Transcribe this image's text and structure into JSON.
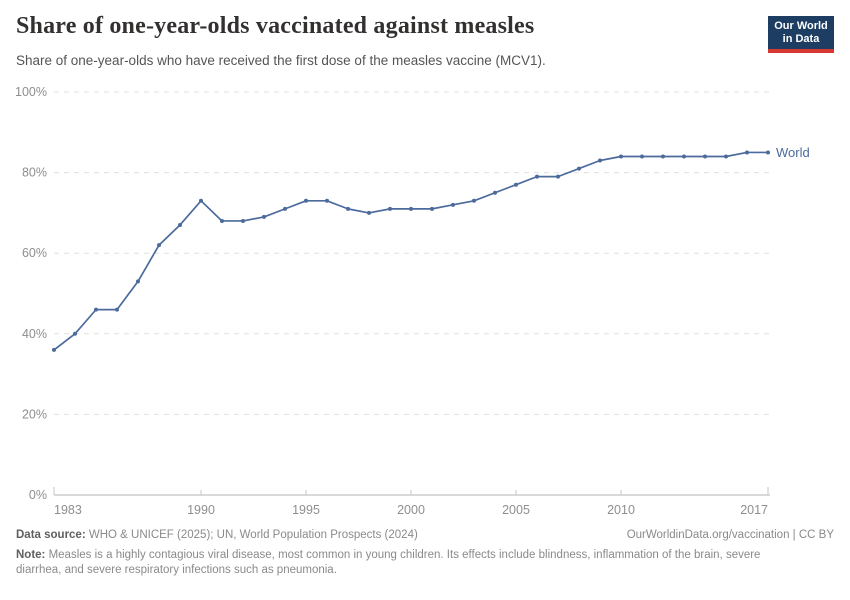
{
  "header": {
    "logo": {
      "line1": "Our World",
      "line2": "in Data"
    }
  },
  "chart_data": {
    "type": "line",
    "title": "Share of one-year-olds vaccinated against measles",
    "subtitle": "Share of one-year-olds who have received the first dose of the measles vaccine (MCV1).",
    "xlabel": "",
    "ylabel": "",
    "xlim": [
      1983,
      2017
    ],
    "ylim": [
      0,
      100
    ],
    "grid": true,
    "legend_position": "line-end-label",
    "x": [
      1983,
      1984,
      1985,
      1986,
      1987,
      1988,
      1989,
      1990,
      1991,
      1992,
      1993,
      1994,
      1995,
      1996,
      1997,
      1998,
      1999,
      2000,
      2001,
      2002,
      2003,
      2004,
      2005,
      2006,
      2007,
      2008,
      2009,
      2010,
      2011,
      2012,
      2013,
      2014,
      2015,
      2016,
      2017
    ],
    "series": [
      {
        "name": "World",
        "color": "#4c6a9c",
        "values": [
          36,
          40,
          46,
          46,
          53,
          62,
          67,
          73,
          68,
          68,
          69,
          71,
          73,
          73,
          71,
          70,
          71,
          71,
          71,
          72,
          73,
          75,
          77,
          79,
          79,
          81,
          83,
          84,
          84,
          84,
          84,
          84,
          84,
          85,
          85
        ]
      }
    ],
    "x_ticks": [
      {
        "value": 1983,
        "label": "1983"
      },
      {
        "value": 1990,
        "label": "1990"
      },
      {
        "value": 1995,
        "label": "1995"
      },
      {
        "value": 2000,
        "label": "2000"
      },
      {
        "value": 2005,
        "label": "2005"
      },
      {
        "value": 2010,
        "label": "2010"
      },
      {
        "value": 2017,
        "label": "2017"
      }
    ],
    "y_ticks": [
      {
        "value": 0,
        "label": "0%"
      },
      {
        "value": 20,
        "label": "20%"
      },
      {
        "value": 40,
        "label": "40%"
      },
      {
        "value": 60,
        "label": "60%"
      },
      {
        "value": 80,
        "label": "80%"
      },
      {
        "value": 100,
        "label": "100%"
      }
    ]
  },
  "colors": {
    "accent_line": "#4c6a9c",
    "grid": "#e0e0e0",
    "axis": "#b3b3b3",
    "tick_text": "#8e8e8e",
    "logo_bg": "#1d3d63",
    "logo_bar": "#d7382f"
  },
  "footer": {
    "datasource_label": "Data source:",
    "datasource_text": " WHO & UNICEF (2025); UN, World Population Prospects (2024)",
    "link_text": "OurWorldinData.org/vaccination | CC BY",
    "note_label": "Note:",
    "note_text": " Measles is a highly contagious viral disease, most common in young children. Its effects include blindness, inflammation of the brain, severe diarrhea, and severe respiratory infections such as pneumonia."
  }
}
